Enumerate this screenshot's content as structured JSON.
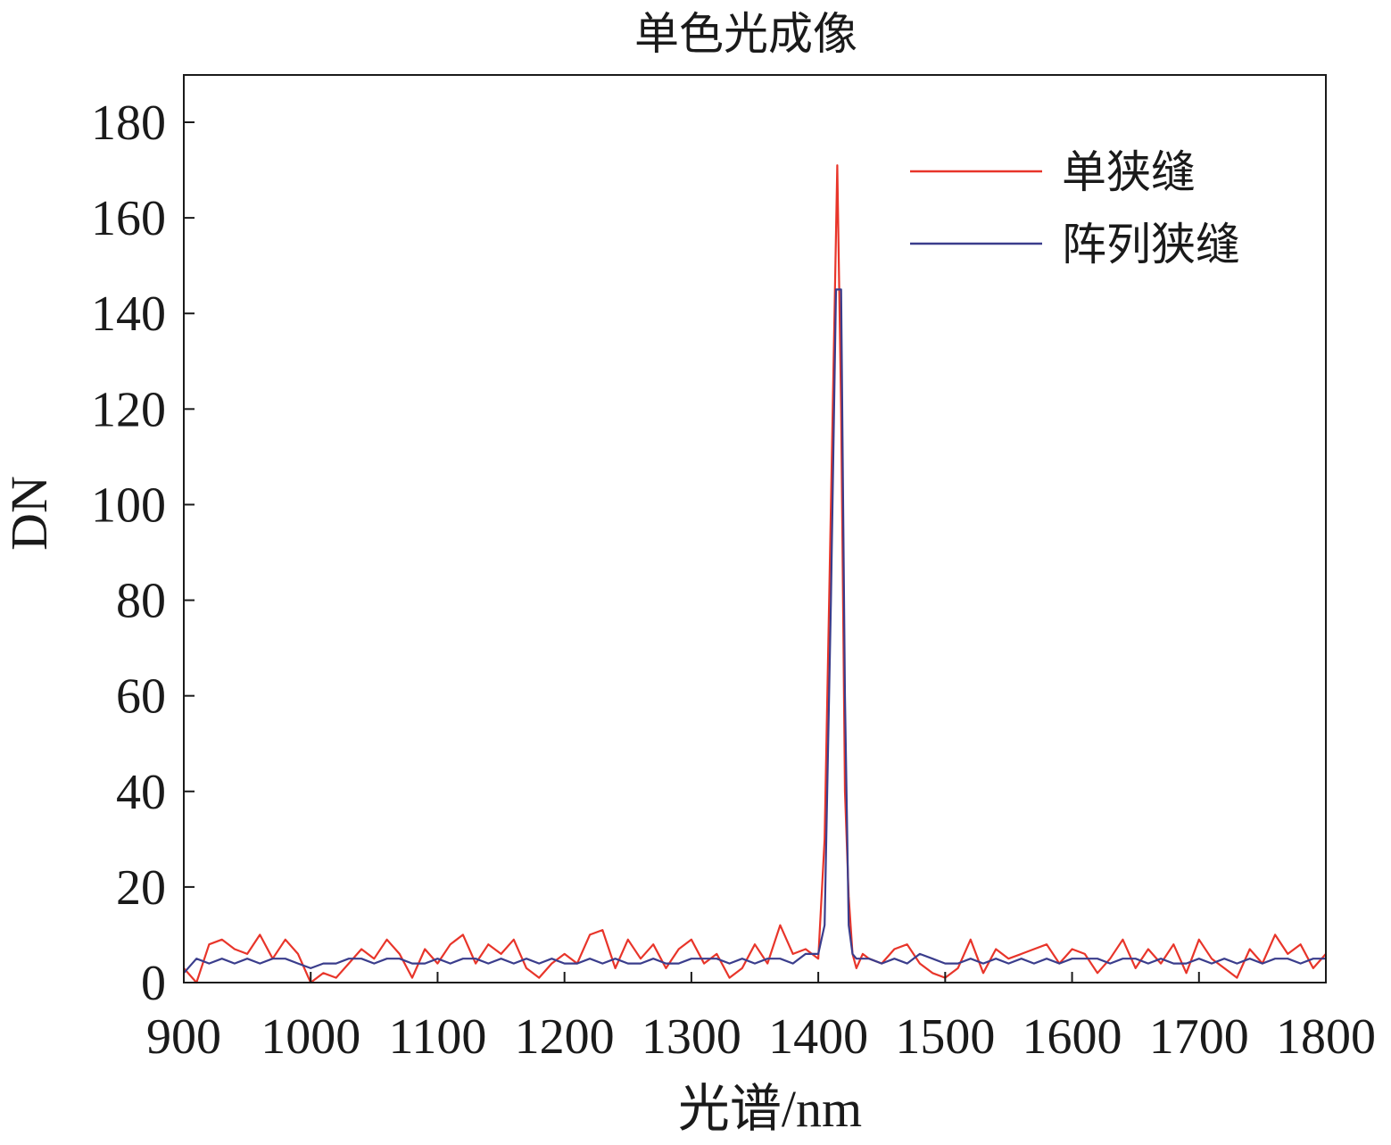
{
  "chart_data": {
    "type": "line",
    "title": "单色光成像",
    "xlabel": "光谱/nm",
    "ylabel": "DN",
    "xlim": [
      900,
      1800
    ],
    "ylim": [
      0,
      190
    ],
    "xticks": [
      900,
      1000,
      1100,
      1200,
      1300,
      1400,
      1500,
      1600,
      1700,
      1800
    ],
    "yticks": [
      0,
      20,
      40,
      60,
      80,
      100,
      120,
      140,
      160,
      180
    ],
    "grid": false,
    "legend_position": "top-right",
    "series": [
      {
        "name": "单狭缝",
        "color": "#e8352a",
        "x": [
          900,
          910,
          920,
          930,
          940,
          950,
          960,
          970,
          980,
          990,
          1000,
          1010,
          1020,
          1030,
          1040,
          1050,
          1060,
          1070,
          1080,
          1090,
          1100,
          1110,
          1120,
          1130,
          1140,
          1150,
          1160,
          1170,
          1180,
          1190,
          1200,
          1210,
          1220,
          1230,
          1240,
          1250,
          1260,
          1270,
          1280,
          1290,
          1300,
          1310,
          1320,
          1330,
          1340,
          1350,
          1360,
          1370,
          1380,
          1390,
          1400,
          1405,
          1410,
          1415,
          1418,
          1421,
          1424,
          1427,
          1430,
          1435,
          1440,
          1450,
          1460,
          1470,
          1480,
          1490,
          1500,
          1510,
          1520,
          1530,
          1540,
          1550,
          1560,
          1570,
          1580,
          1590,
          1600,
          1610,
          1620,
          1630,
          1640,
          1650,
          1660,
          1670,
          1680,
          1690,
          1700,
          1710,
          1720,
          1730,
          1740,
          1750,
          1760,
          1770,
          1780,
          1790,
          1800
        ],
        "values": [
          3,
          0,
          8,
          9,
          7,
          6,
          10,
          5,
          9,
          6,
          0,
          2,
          1,
          4,
          7,
          5,
          9,
          6,
          1,
          7,
          4,
          8,
          10,
          4,
          8,
          6,
          9,
          3,
          1,
          4,
          6,
          4,
          10,
          11,
          3,
          9,
          5,
          8,
          3,
          7,
          9,
          4,
          6,
          1,
          3,
          8,
          4,
          12,
          6,
          7,
          5,
          30,
          100,
          171,
          120,
          40,
          18,
          6,
          3,
          6,
          5,
          4,
          7,
          8,
          4,
          2,
          1,
          3,
          9,
          2,
          7,
          5,
          6,
          7,
          8,
          4,
          7,
          6,
          2,
          5,
          9,
          3,
          7,
          4,
          8,
          2,
          9,
          5,
          3,
          1,
          7,
          4,
          10,
          6,
          8,
          3,
          6
        ]
      },
      {
        "name": "阵列狭缝",
        "color": "#3a3d8c",
        "x": [
          900,
          910,
          920,
          930,
          940,
          950,
          960,
          970,
          980,
          990,
          1000,
          1010,
          1020,
          1030,
          1040,
          1050,
          1060,
          1070,
          1080,
          1090,
          1100,
          1110,
          1120,
          1130,
          1140,
          1150,
          1160,
          1170,
          1180,
          1190,
          1200,
          1210,
          1220,
          1230,
          1240,
          1250,
          1260,
          1270,
          1280,
          1290,
          1300,
          1310,
          1320,
          1330,
          1340,
          1350,
          1360,
          1370,
          1380,
          1390,
          1400,
          1405,
          1410,
          1414,
          1418,
          1421,
          1424,
          1427,
          1430,
          1435,
          1440,
          1450,
          1460,
          1470,
          1480,
          1490,
          1500,
          1510,
          1520,
          1530,
          1540,
          1550,
          1560,
          1570,
          1580,
          1590,
          1600,
          1610,
          1620,
          1630,
          1640,
          1650,
          1660,
          1670,
          1680,
          1690,
          1700,
          1710,
          1720,
          1730,
          1740,
          1750,
          1760,
          1770,
          1780,
          1790,
          1800
        ],
        "values": [
          2,
          5,
          4,
          5,
          4,
          5,
          4,
          5,
          5,
          4,
          3,
          4,
          4,
          5,
          5,
          4,
          5,
          5,
          4,
          4,
          5,
          4,
          5,
          5,
          4,
          5,
          4,
          5,
          4,
          5,
          4,
          4,
          5,
          4,
          5,
          4,
          4,
          5,
          4,
          4,
          5,
          5,
          5,
          4,
          5,
          4,
          5,
          5,
          4,
          6,
          6,
          12,
          80,
          145,
          145,
          60,
          12,
          6,
          5,
          5,
          5,
          4,
          5,
          4,
          6,
          5,
          4,
          4,
          5,
          4,
          5,
          4,
          5,
          4,
          5,
          4,
          5,
          5,
          5,
          4,
          5,
          5,
          4,
          5,
          4,
          4,
          5,
          4,
          5,
          4,
          5,
          4,
          5,
          5,
          4,
          5,
          5
        ]
      }
    ]
  }
}
